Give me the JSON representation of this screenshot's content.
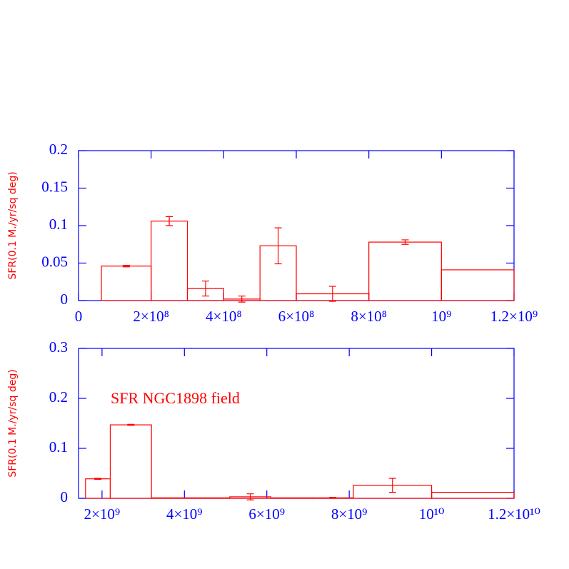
{
  "chart_data": [
    {
      "type": "histogram",
      "ylabel": "SFR(0.1 M./yr/sq deg)",
      "color": "#ff0000",
      "axis_color": "#0000ff",
      "bins": [
        63000000,
        200000000,
        300000000,
        400000000,
        500000000,
        600000000,
        800000000,
        1000000000,
        1200000000
      ],
      "values": [
        0.046,
        0.106,
        0.016,
        0.002,
        0.073,
        0.009,
        0.078,
        0.041
      ],
      "errors": [
        0.001,
        0.006,
        0.01,
        0.004,
        0.024,
        0.01,
        0.003,
        null
      ],
      "xlim": [
        0,
        1200000000
      ],
      "xticks": [
        0,
        {
          "value": 200000000,
          "label": "2×10⁸"
        },
        {
          "value": 400000000,
          "label": "4×10⁸"
        },
        {
          "value": 600000000,
          "label": "6×10⁸"
        },
        {
          "value": 800000000,
          "label": "8×10⁸"
        },
        {
          "value": 1000000000,
          "label": "10⁹"
        },
        {
          "value": 1200000000,
          "label": "1.2×10⁹"
        }
      ],
      "ylim": [
        0,
        0.2
      ],
      "yticks": [
        0,
        0.05,
        0.1,
        0.15,
        0.2
      ]
    },
    {
      "type": "histogram",
      "ylabel": "SFR(0.1 M./yr/sq deg)",
      "color": "#ff0000",
      "axis_color": "#0000ff",
      "annotation": "SFR NGC1898 field",
      "bins": [
        1600000000,
        2200000000,
        3200000000,
        5100000000,
        6100000000,
        7100000000,
        8100000000,
        10000000000,
        12000000000
      ],
      "values": [
        0.039,
        0.147,
        0.001,
        0.003,
        0.001,
        0.001,
        0.026,
        0.012
      ],
      "errors": [
        0.001,
        0.001,
        null,
        0.006,
        null,
        0.001,
        0.014,
        null
      ],
      "xlim": [
        1430000000,
        12000000000
      ],
      "xticks": [
        {
          "value": 2000000000,
          "label": "2×10⁹"
        },
        {
          "value": 4000000000,
          "label": "4×10⁹"
        },
        {
          "value": 6000000000,
          "label": "6×10⁹"
        },
        {
          "value": 8000000000,
          "label": "8×10⁹"
        },
        {
          "value": 10000000000,
          "label": "10¹⁰"
        },
        {
          "value": 12000000000,
          "label": "1.2×10¹⁰"
        }
      ],
      "ylim": [
        0,
        0.3
      ],
      "yticks": [
        0,
        0.1,
        0.2,
        0.3
      ]
    }
  ]
}
